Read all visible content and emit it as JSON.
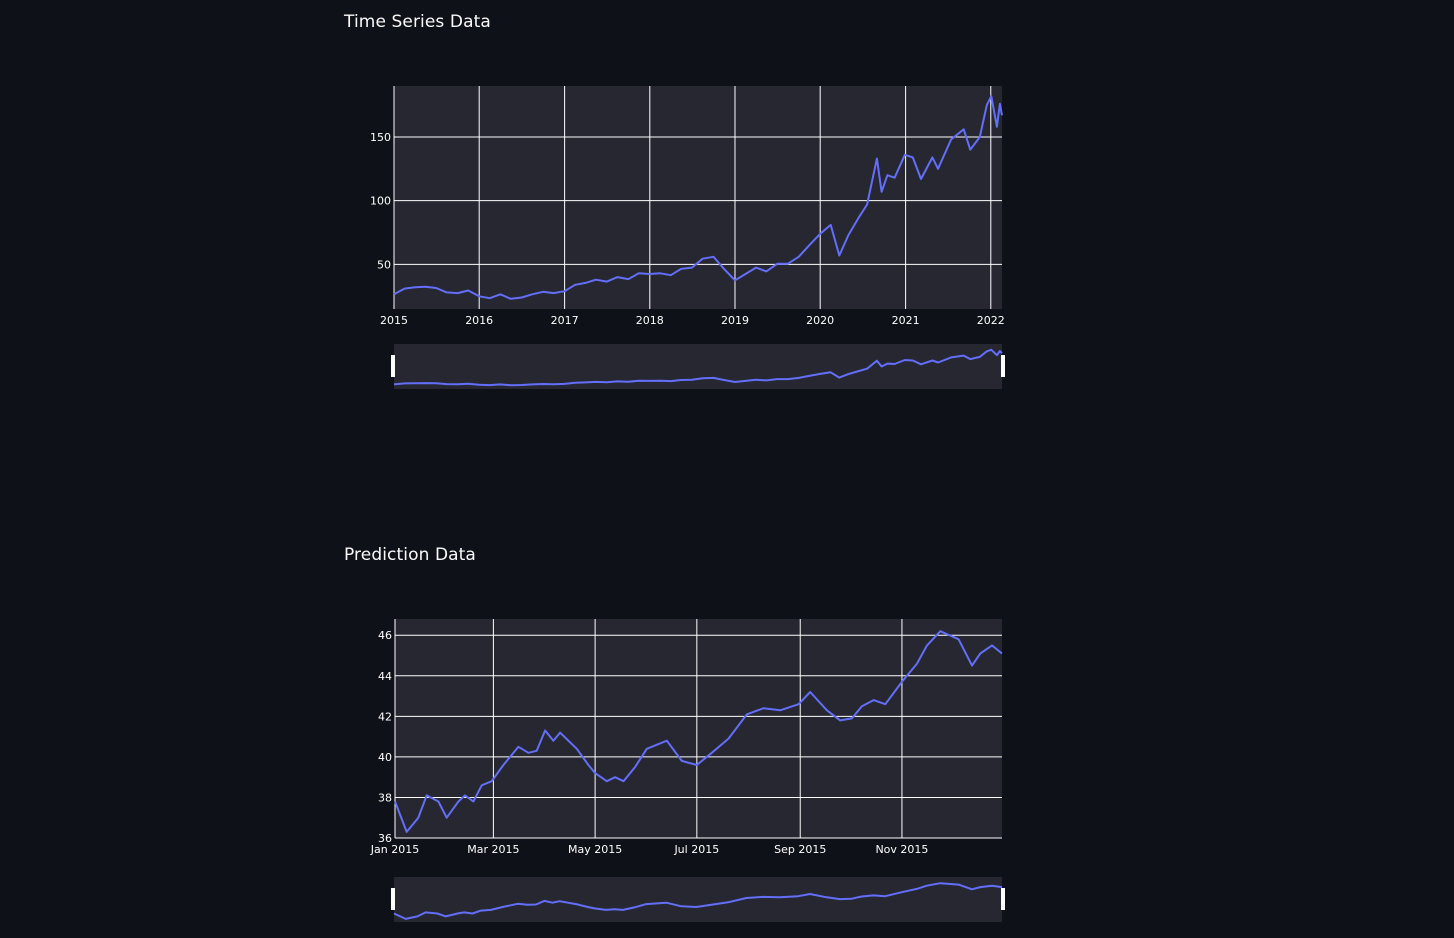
{
  "sections": [
    {
      "title": "Time Series Data"
    },
    {
      "title": "Prediction Data"
    }
  ],
  "colors": {
    "background": "#0e1117",
    "plot_bg": "#262730",
    "grid": "#ffffff",
    "line": "#636efa",
    "text": "#fafafa"
  },
  "chart_data": [
    {
      "type": "line",
      "title": "",
      "xlabel": "",
      "ylabel": "",
      "x_type": "date",
      "xlim": [
        "2015-01-01",
        "2022-02-18"
      ],
      "ylim": [
        15,
        190
      ],
      "x_ticks": [
        "2015",
        "2016",
        "2017",
        "2018",
        "2019",
        "2020",
        "2021",
        "2022"
      ],
      "y_ticks": [
        "50",
        "100",
        "150"
      ],
      "y_tick_values": [
        50,
        100,
        150
      ],
      "grid": true,
      "range_slider": true,
      "series": [
        {
          "values": [
            [
              "2015-01-01",
              26.5
            ],
            [
              "2015-02-15",
              31
            ],
            [
              "2015-04-01",
              32
            ],
            [
              "2015-05-15",
              32.5
            ],
            [
              "2015-07-01",
              31.5
            ],
            [
              "2015-08-15",
              28
            ],
            [
              "2015-10-01",
              27.5
            ],
            [
              "2015-11-15",
              29.5
            ],
            [
              "2016-01-01",
              25
            ],
            [
              "2016-02-15",
              23.5
            ],
            [
              "2016-04-01",
              26.5
            ],
            [
              "2016-05-15",
              23
            ],
            [
              "2016-07-01",
              24
            ],
            [
              "2016-08-15",
              26.5
            ],
            [
              "2016-10-01",
              28.5
            ],
            [
              "2016-11-15",
              27.5
            ],
            [
              "2017-01-01",
              29
            ],
            [
              "2017-02-15",
              34
            ],
            [
              "2017-04-01",
              35.5
            ],
            [
              "2017-05-15",
              38
            ],
            [
              "2017-07-01",
              36.5
            ],
            [
              "2017-08-15",
              40
            ],
            [
              "2017-10-01",
              38.5
            ],
            [
              "2017-11-15",
              43
            ],
            [
              "2018-01-01",
              42.5
            ],
            [
              "2018-02-15",
              43
            ],
            [
              "2018-04-01",
              41.5
            ],
            [
              "2018-05-15",
              46.5
            ],
            [
              "2018-07-01",
              47.5
            ],
            [
              "2018-08-15",
              54.5
            ],
            [
              "2018-10-01",
              56
            ],
            [
              "2018-11-15",
              46.5
            ],
            [
              "2019-01-01",
              37.5
            ],
            [
              "2019-02-15",
              42.5
            ],
            [
              "2019-04-01",
              47.5
            ],
            [
              "2019-05-15",
              44.5
            ],
            [
              "2019-07-01",
              50.5
            ],
            [
              "2019-08-15",
              50.5
            ],
            [
              "2019-10-01",
              56
            ],
            [
              "2019-11-15",
              65
            ],
            [
              "2020-01-01",
              74
            ],
            [
              "2020-02-15",
              81
            ],
            [
              "2020-03-23",
              57
            ],
            [
              "2020-05-01",
              73
            ],
            [
              "2020-06-15",
              87
            ],
            [
              "2020-07-20",
              97
            ],
            [
              "2020-08-31",
              133
            ],
            [
              "2020-09-20",
              107
            ],
            [
              "2020-10-15",
              120
            ],
            [
              "2020-11-15",
              118
            ],
            [
              "2020-12-29",
              136
            ],
            [
              "2021-02-01",
              134
            ],
            [
              "2021-03-08",
              117
            ],
            [
              "2021-04-26",
              134
            ],
            [
              "2021-05-20",
              125
            ],
            [
              "2021-07-15",
              148
            ],
            [
              "2021-09-07",
              156
            ],
            [
              "2021-10-05",
              140
            ],
            [
              "2021-11-15",
              150
            ],
            [
              "2021-12-15",
              175
            ],
            [
              "2022-01-03",
              182
            ],
            [
              "2022-01-27",
              158
            ],
            [
              "2022-02-09",
              176
            ],
            [
              "2022-02-18",
              167
            ]
          ]
        }
      ]
    },
    {
      "type": "line",
      "title": "",
      "xlabel": "",
      "ylabel": "",
      "x_type": "date",
      "xlim": [
        "2015-01-01",
        "2015-12-31"
      ],
      "ylim": [
        36,
        46.8
      ],
      "x_ticks": [
        "Jan 2015",
        "Mar 2015",
        "May 2015",
        "Jul 2015",
        "Sep 2015",
        "Nov 2015"
      ],
      "y_ticks": [
        "36",
        "38",
        "40",
        "42",
        "44",
        "46"
      ],
      "y_tick_values": [
        36,
        38,
        40,
        42,
        44,
        46
      ],
      "grid": true,
      "range_slider": true,
      "series": [
        {
          "values": [
            [
              "2015-01-01",
              37.8
            ],
            [
              "2015-01-08",
              36.3
            ],
            [
              "2015-01-15",
              37
            ],
            [
              "2015-01-20",
              38.1
            ],
            [
              "2015-01-27",
              37.8
            ],
            [
              "2015-02-01",
              37
            ],
            [
              "2015-02-08",
              37.8
            ],
            [
              "2015-02-12",
              38.1
            ],
            [
              "2015-02-17",
              37.8
            ],
            [
              "2015-02-22",
              38.6
            ],
            [
              "2015-02-28",
              38.8
            ],
            [
              "2015-03-07",
              39.6
            ],
            [
              "2015-03-16",
              40.5
            ],
            [
              "2015-03-22",
              40.2
            ],
            [
              "2015-03-27",
              40.3
            ],
            [
              "2015-04-01",
              41.3
            ],
            [
              "2015-04-06",
              40.8
            ],
            [
              "2015-04-10",
              41.2
            ],
            [
              "2015-04-20",
              40.4
            ],
            [
              "2015-04-27",
              39.6
            ],
            [
              "2015-05-01",
              39.2
            ],
            [
              "2015-05-08",
              38.8
            ],
            [
              "2015-05-13",
              39
            ],
            [
              "2015-05-18",
              38.8
            ],
            [
              "2015-05-25",
              39.5
            ],
            [
              "2015-06-01",
              40.4
            ],
            [
              "2015-06-13",
              40.8
            ],
            [
              "2015-06-22",
              39.8
            ],
            [
              "2015-07-01",
              39.6
            ],
            [
              "2015-07-10",
              40.2
            ],
            [
              "2015-07-20",
              40.9
            ],
            [
              "2015-07-31",
              42.1
            ],
            [
              "2015-08-10",
              42.4
            ],
            [
              "2015-08-20",
              42.3
            ],
            [
              "2015-08-31",
              42.6
            ],
            [
              "2015-09-07",
              43.2
            ],
            [
              "2015-09-17",
              42.3
            ],
            [
              "2015-09-25",
              41.8
            ],
            [
              "2015-10-02",
              41.9
            ],
            [
              "2015-10-08",
              42.5
            ],
            [
              "2015-10-15",
              42.8
            ],
            [
              "2015-10-22",
              42.6
            ],
            [
              "2015-11-01",
              43.7
            ],
            [
              "2015-11-10",
              44.6
            ],
            [
              "2015-11-16",
              45.5
            ],
            [
              "2015-11-24",
              46.2
            ],
            [
              "2015-12-05",
              45.8
            ],
            [
              "2015-12-13",
              44.5
            ],
            [
              "2015-12-18",
              45.1
            ],
            [
              "2015-12-25",
              45.5
            ],
            [
              "2015-12-31",
              45.1
            ]
          ]
        }
      ]
    }
  ]
}
